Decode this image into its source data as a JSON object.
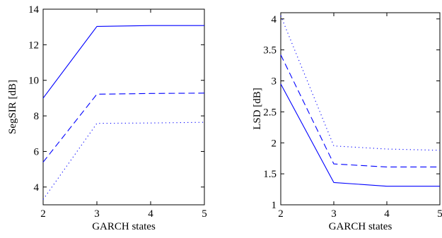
{
  "chart_data": [
    {
      "type": "line",
      "xlabel": "GARCH states",
      "ylabel": "SegSIR [dB]",
      "x": [
        2,
        3,
        4,
        5
      ],
      "xlim": [
        2,
        5
      ],
      "ylim": [
        3,
        14
      ],
      "xticks": [
        "2",
        "3",
        "4",
        "5"
      ],
      "yticks": [
        "4",
        "6",
        "8",
        "10",
        "12",
        "14"
      ],
      "grid": false,
      "color": "#0000ff",
      "series": [
        {
          "style": "solid",
          "values": [
            9.0,
            13.03,
            13.08,
            13.08
          ]
        },
        {
          "style": "dashed",
          "values": [
            5.4,
            9.22,
            9.26,
            9.28
          ]
        },
        {
          "style": "dotted",
          "values": [
            3.3,
            7.58,
            7.6,
            7.64
          ]
        }
      ]
    },
    {
      "type": "line",
      "xlabel": "GARCH states",
      "ylabel": "LSD [dB]",
      "x": [
        2,
        3,
        4,
        5
      ],
      "xlim": [
        2,
        5
      ],
      "ylim": [
        1,
        4.1
      ],
      "xticks": [
        "2",
        "3",
        "4",
        "5"
      ],
      "yticks": [
        "1",
        "1.5",
        "2",
        "2.5",
        "3",
        "3.5",
        "4"
      ],
      "grid": false,
      "color": "#0000ff",
      "series": [
        {
          "style": "solid",
          "values": [
            2.95,
            1.36,
            1.3,
            1.3
          ]
        },
        {
          "style": "dashed",
          "values": [
            3.42,
            1.66,
            1.61,
            1.61
          ]
        },
        {
          "style": "dotted",
          "values": [
            4.05,
            1.95,
            1.9,
            1.88
          ]
        }
      ]
    }
  ]
}
